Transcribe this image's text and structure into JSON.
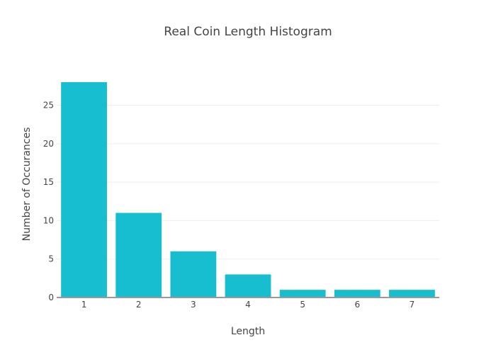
{
  "chart_data": {
    "type": "bar",
    "title": "Real Coin Length Histogram",
    "xlabel": "Length",
    "ylabel": "Number of Occurances",
    "categories": [
      "1",
      "2",
      "3",
      "4",
      "5",
      "6",
      "7"
    ],
    "values": [
      28,
      11,
      6,
      3,
      1,
      1,
      1
    ],
    "ylim": [
      0,
      29.47
    ],
    "yticks": [
      0,
      5,
      10,
      15,
      20,
      25
    ],
    "grid": true,
    "colors": {
      "bar": "#17becf",
      "grid": "#eeeeee",
      "axis": "#999999"
    }
  }
}
